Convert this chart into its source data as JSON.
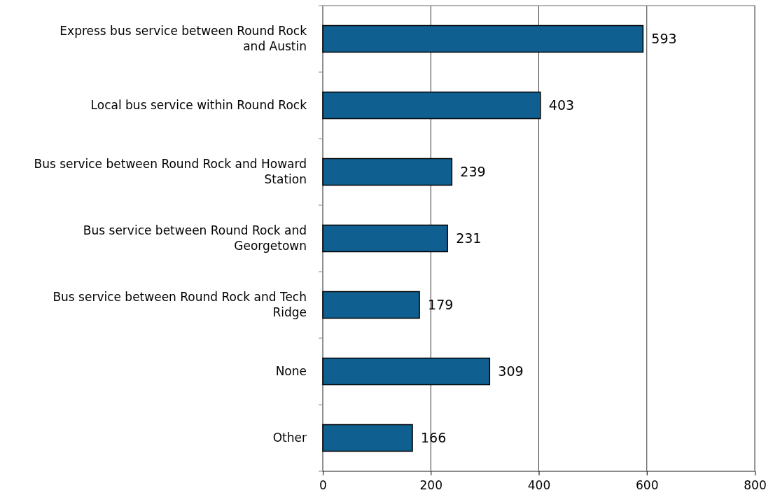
{
  "chart_data": {
    "type": "bar",
    "orientation": "horizontal",
    "categories": [
      "Express bus service between Round Rock and Austin",
      "Local bus service within Round Rock",
      "Bus service between Round Rock and Howard Station",
      "Bus service between Round Rock and Georgetown",
      "Bus service between Round Rock and Tech Ridge",
      "None",
      "Other"
    ],
    "values": [
      593,
      403,
      239,
      231,
      179,
      309,
      166
    ],
    "color": "#0f5f91",
    "xlim": [
      0,
      800
    ],
    "xticks": [
      0,
      200,
      400,
      600,
      800
    ],
    "grid": "x",
    "data_labels": true
  }
}
